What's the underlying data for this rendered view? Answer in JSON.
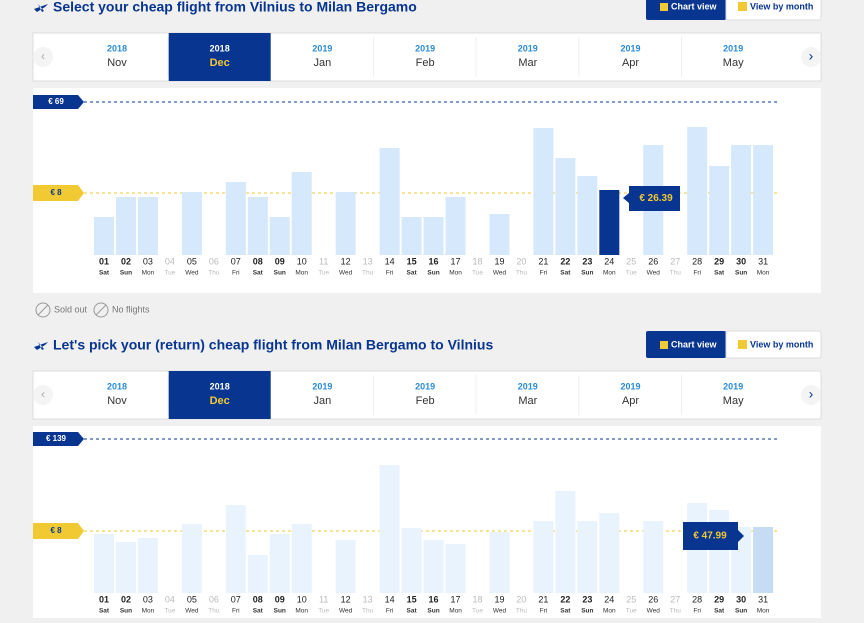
{
  "sections": [
    {
      "title": "Select your cheap flight from Vilnius to Milan Bergamo",
      "buttons": [
        "Chart view",
        "View by month"
      ],
      "months": [
        {
          "year": "2018",
          "month": "Nov"
        },
        {
          "year": "2018",
          "month": "Dec"
        },
        {
          "year": "2019",
          "month": "Jan"
        },
        {
          "year": "2019",
          "month": "Feb"
        },
        {
          "year": "2019",
          "month": "Mar"
        },
        {
          "year": "2019",
          "month": "Apr"
        },
        {
          "year": "2019",
          "month": "May"
        }
      ],
      "high_price": "€ 69",
      "low_price": "€ 8",
      "selected_price": "€ 26.39",
      "days": [
        "01",
        "02",
        "03",
        "04",
        "05",
        "06",
        "07",
        "08",
        "09",
        "10",
        "11",
        "12",
        "13",
        "14",
        "15",
        "16",
        "17",
        "18",
        "19",
        "20",
        "21",
        "22",
        "23",
        "24",
        "25",
        "26",
        "27",
        "28",
        "29",
        "30",
        "31"
      ],
      "weekdays": [
        "Sat",
        "Sun",
        "Mon",
        "Tue",
        "Wed",
        "Thu",
        "Fri",
        "Sat",
        "Sun",
        "Mon",
        "Tue",
        "Wed",
        "Thu",
        "Fri",
        "Sat",
        "Sun",
        "Mon",
        "Tue",
        "Wed",
        "Thu",
        "Fri",
        "Sat",
        "Sun",
        "Mon",
        "Tue",
        "Wed",
        "Thu",
        "Fri",
        "Sat",
        "Sun",
        "Mon"
      ]
    },
    {
      "title": "Let's pick your (return) cheap flight from Milan Bergamo to Vilnius",
      "buttons": [
        "Chart view",
        "View by month"
      ],
      "months": [
        {
          "year": "2018",
          "month": "Nov"
        },
        {
          "year": "2018",
          "month": "Dec"
        },
        {
          "year": "2019",
          "month": "Jan"
        },
        {
          "year": "2019",
          "month": "Feb"
        },
        {
          "year": "2019",
          "month": "Mar"
        },
        {
          "year": "2019",
          "month": "Apr"
        },
        {
          "year": "2019",
          "month": "May"
        }
      ],
      "high_price": "€ 139",
      "low_price": "€ 8",
      "selected_price": "€ 47.99",
      "days": [
        "01",
        "02",
        "03",
        "04",
        "05",
        "06",
        "07",
        "08",
        "09",
        "10",
        "11",
        "12",
        "13",
        "14",
        "15",
        "16",
        "17",
        "18",
        "19",
        "20",
        "21",
        "22",
        "23",
        "24",
        "25",
        "26",
        "27",
        "28",
        "29",
        "30",
        "31"
      ],
      "weekdays": [
        "Sat",
        "Sun",
        "Mon",
        "Tue",
        "Wed",
        "Thu",
        "Fri",
        "Sat",
        "Sun",
        "Mon",
        "Tue",
        "Wed",
        "Thu",
        "Fri",
        "Sat",
        "Sun",
        "Mon",
        "Tue",
        "Wed",
        "Thu",
        "Fri",
        "Sat",
        "Sun",
        "Mon",
        "Tue",
        "Wed",
        "Thu",
        "Fri",
        "Sat",
        "Sun",
        "Mon"
      ]
    }
  ],
  "legend": [
    "Sold out",
    "No flights"
  ]
}
